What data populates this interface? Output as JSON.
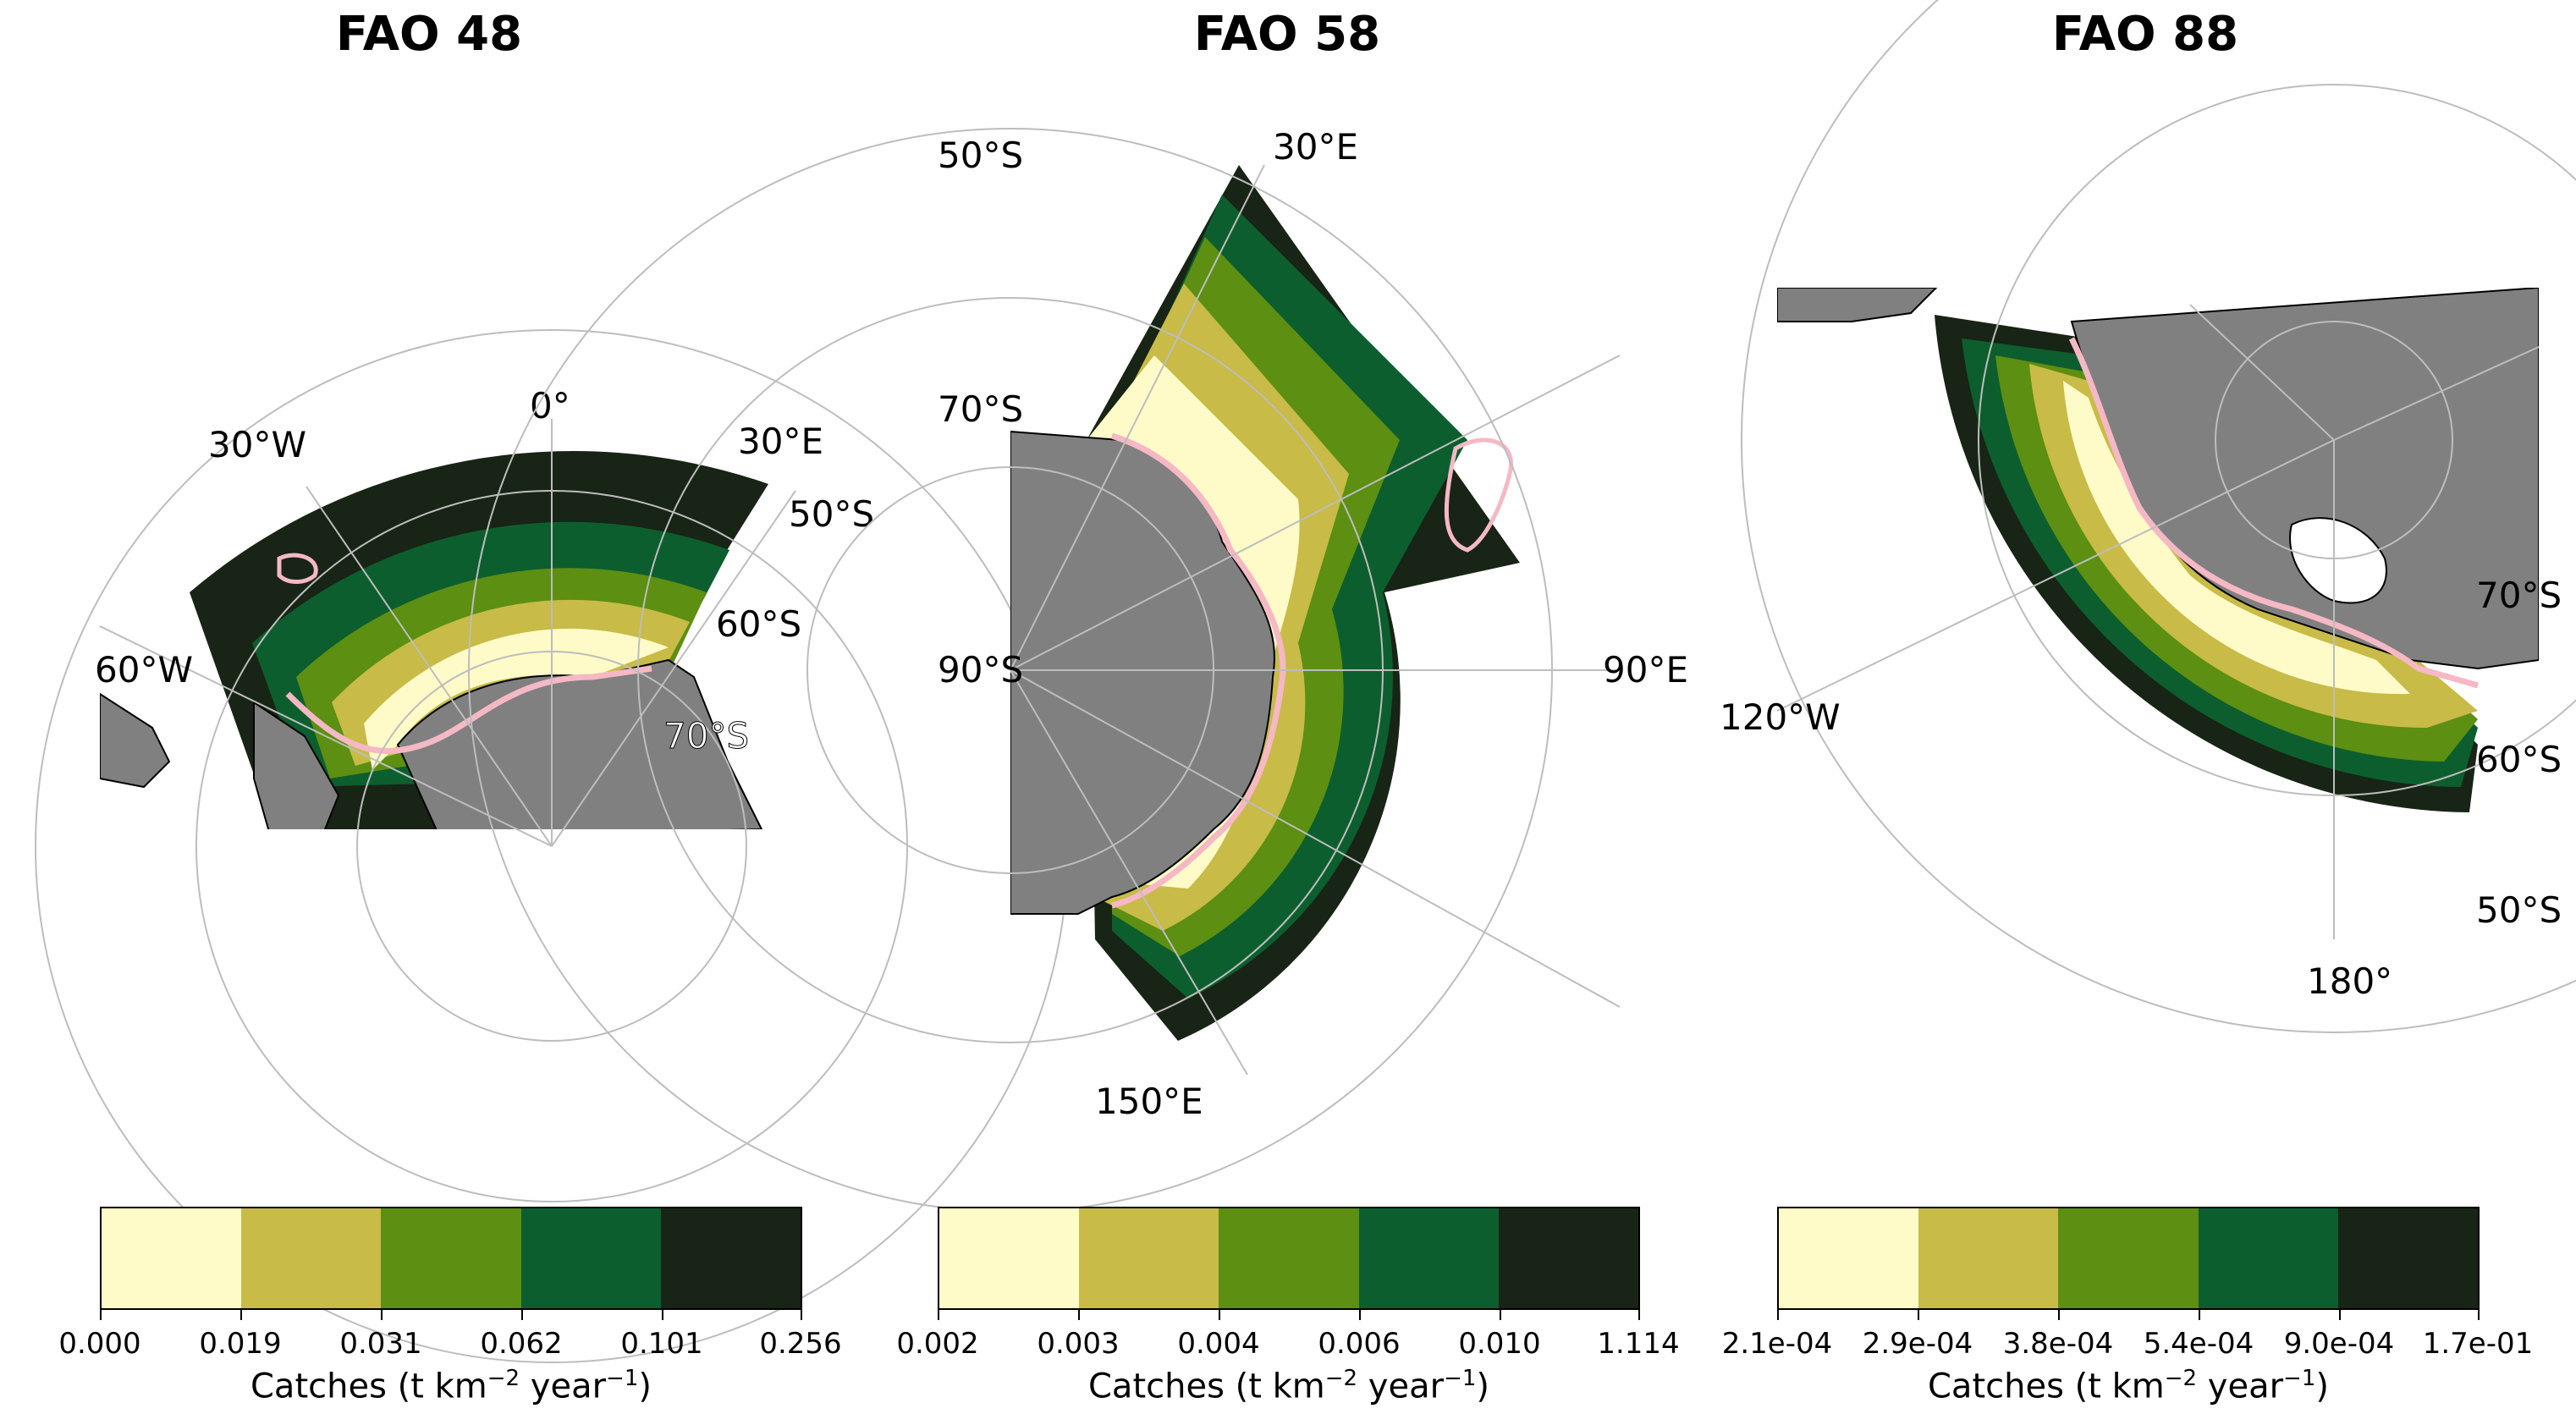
{
  "colors": [
    "#fefbc9",
    "#c8bb47",
    "#5c8f12",
    "#0c5e2e",
    "#182415"
  ],
  "land_color": "#808080",
  "boundary_color": "#f5b8c4",
  "colorbar_label": "Catches (t km",
  "colorbar_label_sup1": "−2",
  "colorbar_label_mid": " year",
  "colorbar_label_sup2": "−1",
  "colorbar_label_end": ")",
  "panels": [
    {
      "title": "FAO 48",
      "lon_labels": [
        "0°",
        "30°W",
        "30°E",
        "60°W"
      ],
      "lat_labels": [
        "50°S",
        "60°S",
        "70°S"
      ],
      "ticks": [
        "0.000",
        "0.019",
        "0.031",
        "0.062",
        "0.101",
        "0.256"
      ]
    },
    {
      "title": "FAO 58",
      "lon_labels": [
        "30°E",
        "90°E",
        "150°E"
      ],
      "lat_labels": [
        "50°S",
        "70°S",
        "90°S"
      ],
      "ticks": [
        "0.002",
        "0.003",
        "0.004",
        "0.006",
        "0.010",
        "1.114"
      ]
    },
    {
      "title": "FAO 88",
      "lon_labels": [
        "120°W",
        "180°"
      ],
      "lat_labels": [
        "70°S",
        "60°S",
        "50°S"
      ],
      "ticks": [
        "2.1e-04",
        "2.9e-04",
        "3.8e-04",
        "5.4e-04",
        "9.0e-04",
        "1.7e-01"
      ]
    }
  ]
}
